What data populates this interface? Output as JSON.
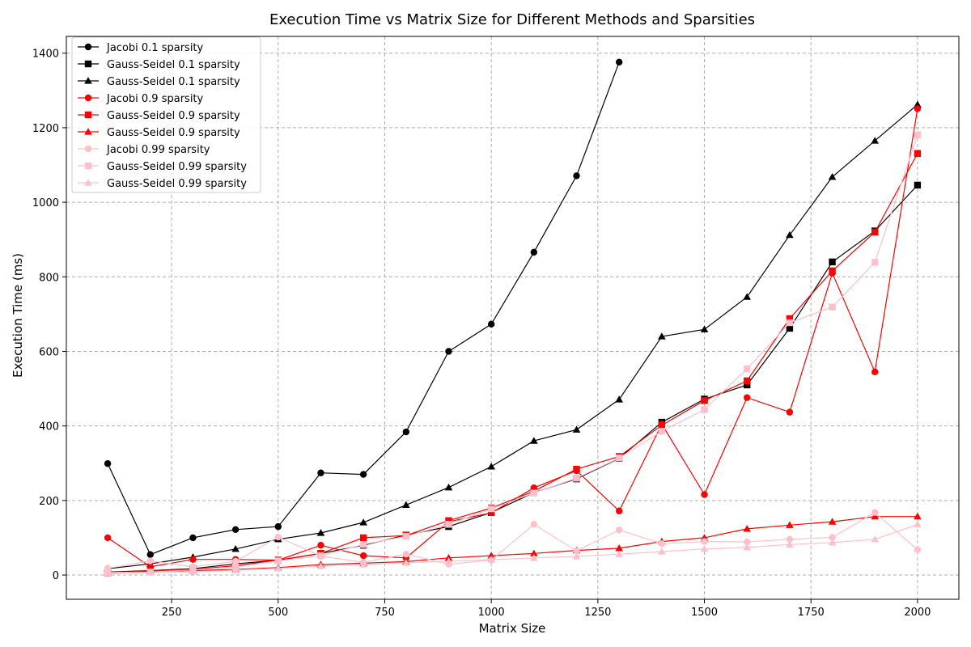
{
  "chart_data": {
    "type": "line",
    "title": "Execution Time vs Matrix Size for Different Methods and Sparsities",
    "xlabel": "Matrix Size",
    "ylabel": "Execution Time (ms)",
    "xlim": [
      3,
      2097
    ],
    "ylim": [
      -65,
      1445
    ],
    "xticks": [
      250,
      500,
      750,
      1000,
      1250,
      1500,
      1750,
      2000
    ],
    "yticks": [
      0,
      200,
      400,
      600,
      800,
      1000,
      1200,
      1400
    ],
    "grid": true,
    "legend_position": "top-left",
    "series": [
      {
        "name": "Jacobi 0.1 sparsity",
        "color": "#000000",
        "marker": "circle",
        "x": [
          100,
          200,
          300,
          400,
          500,
          600,
          700,
          800,
          900,
          1000,
          1100,
          1200,
          1300
        ],
        "y": [
          299,
          55,
          100,
          122,
          130,
          274,
          270,
          384,
          600,
          673,
          866,
          1071,
          1376
        ]
      },
      {
        "name": "Gauss-Seidel 0.1 sparsity",
        "color": "#000000",
        "marker": "square",
        "x": [
          100,
          200,
          300,
          400,
          500,
          600,
          700,
          800,
          900,
          1000,
          1100,
          1200,
          1300,
          1400,
          1500,
          1600,
          1700,
          1800,
          1900,
          2000
        ],
        "y": [
          8,
          12,
          17,
          30,
          40,
          58,
          80,
          107,
          130,
          168,
          221,
          258,
          313,
          410,
          472,
          510,
          662,
          840,
          923,
          1046
        ]
      },
      {
        "name": "Gauss-Seidel 0.1 sparsity",
        "color": "#000000",
        "marker": "triangle",
        "x": [
          100,
          200,
          300,
          400,
          500,
          600,
          700,
          800,
          900,
          1000,
          1100,
          1200,
          1300,
          1400,
          1500,
          1600,
          1700,
          1800,
          1900,
          2000
        ],
        "y": [
          17,
          30,
          48,
          70,
          96,
          113,
          141,
          188,
          235,
          291,
          360,
          390,
          471,
          640,
          659,
          746,
          912,
          1068,
          1165,
          1262
        ]
      },
      {
        "name": "Jacobi 0.9 sparsity",
        "color": "#ff0000",
        "marker": "circle",
        "x": [
          100,
          200,
          300,
          400,
          500,
          600,
          700,
          800,
          900,
          1000,
          1100,
          1200,
          1300,
          1400,
          1500,
          1600,
          1700,
          1800,
          1900,
          2000
        ],
        "y": [
          100,
          22,
          42,
          42,
          40,
          80,
          52,
          46,
          143,
          167,
          234,
          280,
          172,
          405,
          216,
          476,
          437,
          810,
          545,
          1251
        ]
      },
      {
        "name": "Gauss-Seidel 0.9 sparsity",
        "color": "#ff0000",
        "marker": "square",
        "x": [
          100,
          200,
          300,
          400,
          500,
          600,
          700,
          800,
          900,
          1000,
          1100,
          1200,
          1300,
          1400,
          1500,
          1600,
          1700,
          1800,
          1900,
          2000
        ],
        "y": [
          5,
          12,
          15,
          25,
          40,
          58,
          100,
          106,
          146,
          180,
          225,
          284,
          318,
          402,
          468,
          521,
          688,
          816,
          920,
          1131
        ]
      },
      {
        "name": "Gauss-Seidel 0.9 sparsity",
        "color": "#ff0000",
        "marker": "triangle",
        "x": [
          100,
          200,
          300,
          400,
          500,
          600,
          700,
          800,
          900,
          1000,
          1100,
          1200,
          1300,
          1400,
          1500,
          1600,
          1700,
          1800,
          1900,
          2000
        ],
        "y": [
          7,
          10,
          12,
          15,
          20,
          28,
          32,
          36,
          46,
          52,
          58,
          66,
          72,
          90,
          100,
          124,
          134,
          143,
          157,
          157
        ]
      },
      {
        "name": "Jacobi 0.99 sparsity",
        "color": "#ffc0cb",
        "marker": "circle",
        "x": [
          100,
          200,
          300,
          400,
          500,
          600,
          700,
          800,
          900,
          1000,
          1100,
          1200,
          1300,
          1400,
          1500,
          1600,
          1700,
          1800,
          1900,
          2000
        ],
        "y": [
          18,
          38,
          22,
          37,
          102,
          51,
          34,
          56,
          29,
          40,
          136,
          65,
          121,
          84,
          90,
          89,
          96,
          101,
          168,
          68
        ]
      },
      {
        "name": "Gauss-Seidel 0.99 sparsity",
        "color": "#ffc0cb",
        "marker": "square",
        "x": [
          100,
          200,
          300,
          400,
          500,
          600,
          700,
          800,
          900,
          1000,
          1100,
          1200,
          1300,
          1400,
          1500,
          1600,
          1700,
          1800,
          1900,
          2000
        ],
        "y": [
          7,
          8,
          14,
          22,
          38,
          52,
          82,
          104,
          136,
          178,
          220,
          260,
          314,
          386,
          444,
          553,
          677,
          719,
          839,
          1181
        ]
      },
      {
        "name": "Gauss-Seidel 0.99 sparsity",
        "color": "#ffc0cb",
        "marker": "triangle",
        "x": [
          100,
          200,
          300,
          400,
          500,
          600,
          700,
          800,
          900,
          1000,
          1100,
          1200,
          1300,
          1400,
          1500,
          1600,
          1700,
          1800,
          1900,
          2000
        ],
        "y": [
          4,
          7,
          9,
          13,
          18,
          24,
          28,
          33,
          37,
          41,
          46,
          50,
          56,
          63,
          70,
          74,
          82,
          87,
          96,
          136
        ]
      }
    ]
  }
}
